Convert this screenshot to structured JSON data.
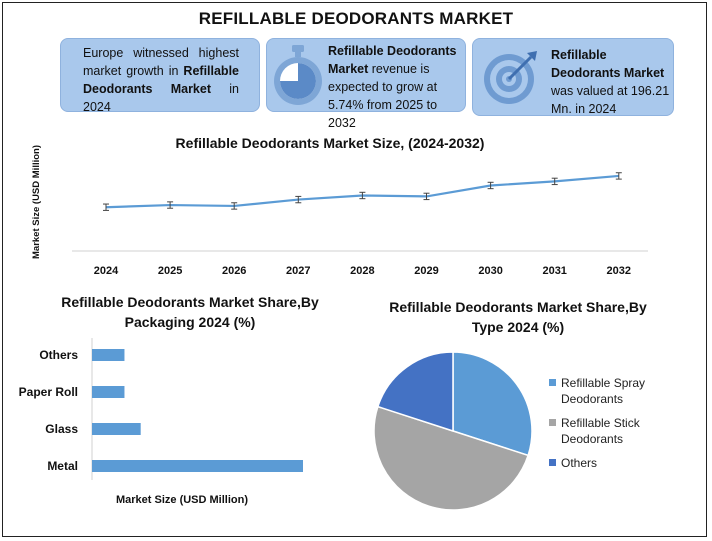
{
  "title": "REFILLABLE DEODORANTS MARKET",
  "cards": [
    {
      "segments": [
        {
          "text": "Europe witnessed highest market growth in ",
          "bold": false
        },
        {
          "text": "Refillable Deodorants Market",
          "bold": true
        },
        {
          "text": " in 2024",
          "bold": false
        }
      ],
      "icon": ""
    },
    {
      "segments": [
        {
          "text": "Refillable Deodorants Market",
          "bold": true
        },
        {
          "text": " revenue is expected to grow at 5.74% from 2025 to 2032",
          "bold": false
        }
      ],
      "icon": "stopwatch-icon"
    },
    {
      "segments": [
        {
          "text": "Refillable Deodorants Market",
          "bold": true
        },
        {
          "text": " was valued at 196.21 Mn. in 2024",
          "bold": false
        }
      ],
      "icon": "target-icon"
    }
  ],
  "colors": {
    "card_bg": "#a9c8ec",
    "line": "#5b9bd5",
    "pie_blue": "#5b9bd5",
    "pie_gray": "#a5a5a5",
    "pie_dark": "#4472c4"
  },
  "chart_data": [
    {
      "type": "line",
      "title": "Refillable Deodorants Market Size, (2024-2032)",
      "ylabel": "Market Size (USD Million)",
      "xlabel": "",
      "x": [
        "2024",
        "2025",
        "2026",
        "2027",
        "2028",
        "2029",
        "2030",
        "2031",
        "2032"
      ],
      "values": [
        196.21,
        201,
        199,
        213,
        222,
        220,
        244,
        253,
        265
      ],
      "error": 7,
      "ylim": [
        100,
        300
      ],
      "grid": false,
      "error_bars": true
    },
    {
      "type": "bar",
      "orientation": "horizontal",
      "title": "Refillable Deodorants Market  Share,By Packaging 2024 (%)",
      "xlabel": "Market Size (USD Million)",
      "categories": [
        "Others",
        "Paper Roll",
        "Glass",
        "Metal"
      ],
      "values": [
        10,
        10,
        15,
        65
      ],
      "xlim": [
        0,
        70
      ]
    },
    {
      "type": "pie",
      "title": "Refillable Deodorants Market Share,By Type 2024  (%)",
      "labels": [
        "Refillable Spray Deodorants",
        "Refillable Stick Deodorants",
        "Others"
      ],
      "values": [
        30,
        50,
        20
      ],
      "legend": "right"
    }
  ]
}
